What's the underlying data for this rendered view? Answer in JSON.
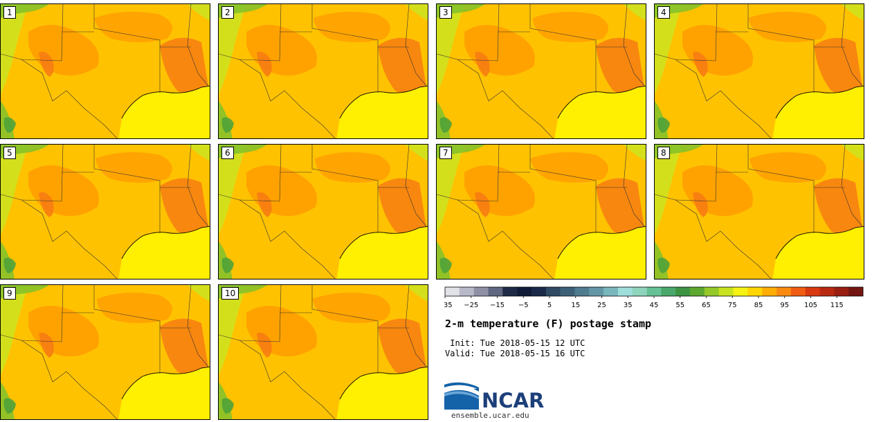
{
  "title": "2-m temperature (F) postage stamp",
  "init_line": " Init: Tue 2018-05-15 12 UTC",
  "valid_line": "Valid: Tue 2018-05-15 16 UTC",
  "logo_text": "NCAR",
  "site": "ensemble.ucar.edu",
  "members": [
    "1",
    "2",
    "3",
    "4",
    "5",
    "6",
    "7",
    "8",
    "9",
    "10"
  ],
  "colorbar": {
    "min": -35,
    "max": 125,
    "step": 5,
    "tick_labels": [
      "−35",
      "−25",
      "−15",
      "−5",
      "5",
      "15",
      "25",
      "35",
      "45",
      "55",
      "65",
      "75",
      "85",
      "95",
      "105",
      "115"
    ],
    "colors": [
      "#e1e1e8",
      "#b8b9c8",
      "#8f90a6",
      "#606781",
      "#1f2a46",
      "#101c38",
      "#1a2a48",
      "#304a64",
      "#3d6078",
      "#507c90",
      "#6397a5",
      "#7ab7bd",
      "#9edfdc",
      "#8fd4bd",
      "#67c196",
      "#4aa86c",
      "#3c9443",
      "#5da830",
      "#95c92a",
      "#c8e21f",
      "#f5f214",
      "#ffd600",
      "#ffad00",
      "#f98a0f",
      "#ef5c12",
      "#d8380f",
      "#b92811",
      "#9a1e12",
      "#731611"
    ]
  },
  "map_colors": {
    "ocean": "#ffef00",
    "warm": "#ffc200",
    "hot": "#ff9f00",
    "hotter": "#f77c12",
    "cool": "#cfe21e",
    "cooler": "#86c22a",
    "coolest": "#4fa23a"
  }
}
